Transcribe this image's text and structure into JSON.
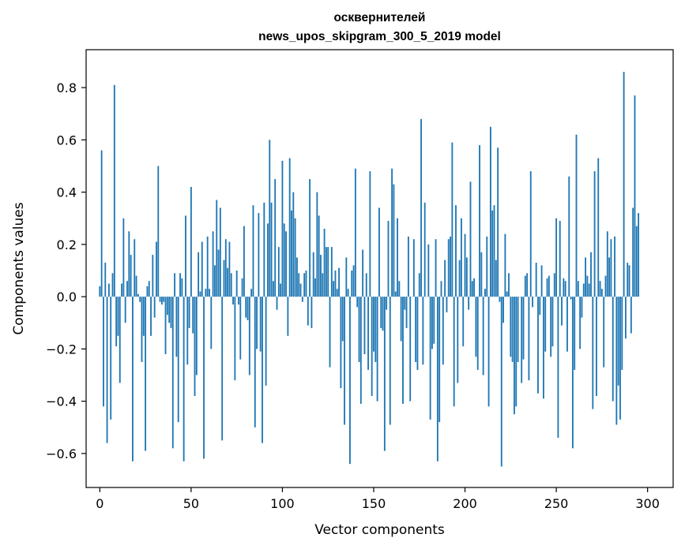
{
  "chart_data": {
    "type": "bar",
    "title": "осквернителей",
    "subtitle": "news_upos_skipgram_300_5_2019 model",
    "xlabel": "Vector components",
    "ylabel": "Components values",
    "xlim": [
      -7.5,
      314
    ],
    "ylim": [
      -0.73,
      0.945
    ],
    "x_ticks": [
      0,
      50,
      100,
      150,
      200,
      250,
      300
    ],
    "y_ticks": [
      -0.6,
      -0.4,
      -0.2,
      0.0,
      0.2,
      0.4,
      0.6,
      0.8
    ],
    "x_tick_labels": [
      "0",
      "50",
      "100",
      "150",
      "200",
      "250",
      "300"
    ],
    "y_tick_labels": [
      "−0.6",
      "−0.4",
      "−0.2",
      "0.0",
      "0.2",
      "0.4",
      "0.6",
      "0.8"
    ],
    "bar_color": "#1f77b4",
    "grid": false,
    "legend": "none",
    "values": [
      0.04,
      0.56,
      -0.42,
      0.13,
      -0.56,
      0.05,
      -0.47,
      0.09,
      0.81,
      -0.19,
      -0.15,
      -0.33,
      0.05,
      0.3,
      -0.1,
      0.06,
      0.25,
      0.16,
      -0.63,
      0.22,
      0.08,
      0.01,
      -0.02,
      -0.25,
      -0.15,
      -0.59,
      0.04,
      0.06,
      -0.15,
      0.16,
      -0.08,
      0.21,
      0.5,
      -0.02,
      -0.03,
      -0.02,
      -0.22,
      -0.07,
      -0.1,
      -0.12,
      -0.58,
      0.09,
      -0.23,
      -0.48,
      0.09,
      0.07,
      -0.63,
      0.31,
      -0.26,
      -0.12,
      0.42,
      -0.14,
      -0.38,
      -0.3,
      0.17,
      0.02,
      0.21,
      -0.62,
      0.03,
      0.23,
      0.03,
      -0.2,
      0.25,
      0.12,
      0.37,
      0.18,
      0.34,
      -0.55,
      0.14,
      0.22,
      0.11,
      0.21,
      0.09,
      -0.03,
      -0.32,
      0.1,
      -0.03,
      -0.24,
      0.07,
      0.27,
      -0.08,
      -0.09,
      -0.3,
      0.03,
      0.35,
      -0.5,
      -0.2,
      0.32,
      -0.21,
      -0.56,
      0.36,
      -0.34,
      0.28,
      0.6,
      0.36,
      0.06,
      0.45,
      -0.05,
      0.19,
      0.05,
      0.52,
      0.28,
      0.25,
      -0.15,
      0.53,
      0.33,
      0.4,
      0.3,
      0.15,
      0.09,
      0.05,
      -0.02,
      0.09,
      0.1,
      -0.11,
      0.45,
      -0.12,
      0.17,
      0.07,
      0.4,
      0.31,
      0.16,
      0.09,
      0.26,
      0.19,
      0.19,
      -0.27,
      0.19,
      0.06,
      0.1,
      0.03,
      0.11,
      -0.35,
      -0.17,
      -0.49,
      0.15,
      0.03,
      -0.64,
      0.1,
      0.12,
      0.49,
      -0.04,
      -0.25,
      -0.41,
      0.18,
      -0.22,
      0.09,
      -0.28,
      0.48,
      -0.38,
      -0.21,
      -0.25,
      -0.4,
      0.34,
      -0.12,
      -0.13,
      -0.59,
      -0.05,
      0.29,
      -0.49,
      0.49,
      0.43,
      0.02,
      0.3,
      0.06,
      -0.17,
      -0.41,
      -0.05,
      -0.12,
      0.23,
      -0.4,
      0.0,
      0.22,
      -0.25,
      -0.28,
      0.09,
      0.68,
      -0.26,
      0.36,
      0.0,
      0.2,
      -0.47,
      -0.2,
      -0.18,
      0.22,
      -0.63,
      -0.48,
      0.06,
      -0.26,
      0.14,
      -0.06,
      0.22,
      0.23,
      0.59,
      -0.42,
      0.35,
      -0.33,
      0.14,
      0.3,
      -0.19,
      0.24,
      0.15,
      -0.05,
      0.44,
      0.06,
      0.07,
      -0.23,
      -0.28,
      0.58,
      0.17,
      -0.3,
      0.03,
      0.23,
      -0.42,
      0.65,
      0.33,
      0.35,
      0.14,
      0.57,
      -0.02,
      -0.65,
      -0.1,
      0.24,
      0.02,
      0.09,
      -0.23,
      -0.25,
      -0.45,
      -0.42,
      -0.25,
      0.0,
      -0.33,
      -0.24,
      0.08,
      0.09,
      -0.32,
      0.48,
      -0.04,
      0.0,
      0.13,
      -0.37,
      -0.07,
      0.12,
      -0.39,
      -0.21,
      0.07,
      0.08,
      -0.23,
      -0.19,
      0.09,
      0.3,
      -0.54,
      0.29,
      -0.11,
      0.07,
      0.06,
      -0.21,
      0.46,
      -0.01,
      -0.58,
      -0.28,
      0.62,
      0.06,
      -0.2,
      -0.08,
      0.05,
      0.15,
      0.08,
      0.05,
      0.17,
      -0.43,
      0.48,
      -0.38,
      0.53,
      0.06,
      0.03,
      -0.27,
      0.08,
      0.25,
      0.15,
      0.22,
      -0.4,
      0.23,
      -0.49,
      -0.34,
      -0.47,
      -0.28,
      0.86,
      -0.16,
      0.13,
      0.12,
      -0.14,
      0.34,
      0.77,
      0.27,
      0.32
    ]
  }
}
